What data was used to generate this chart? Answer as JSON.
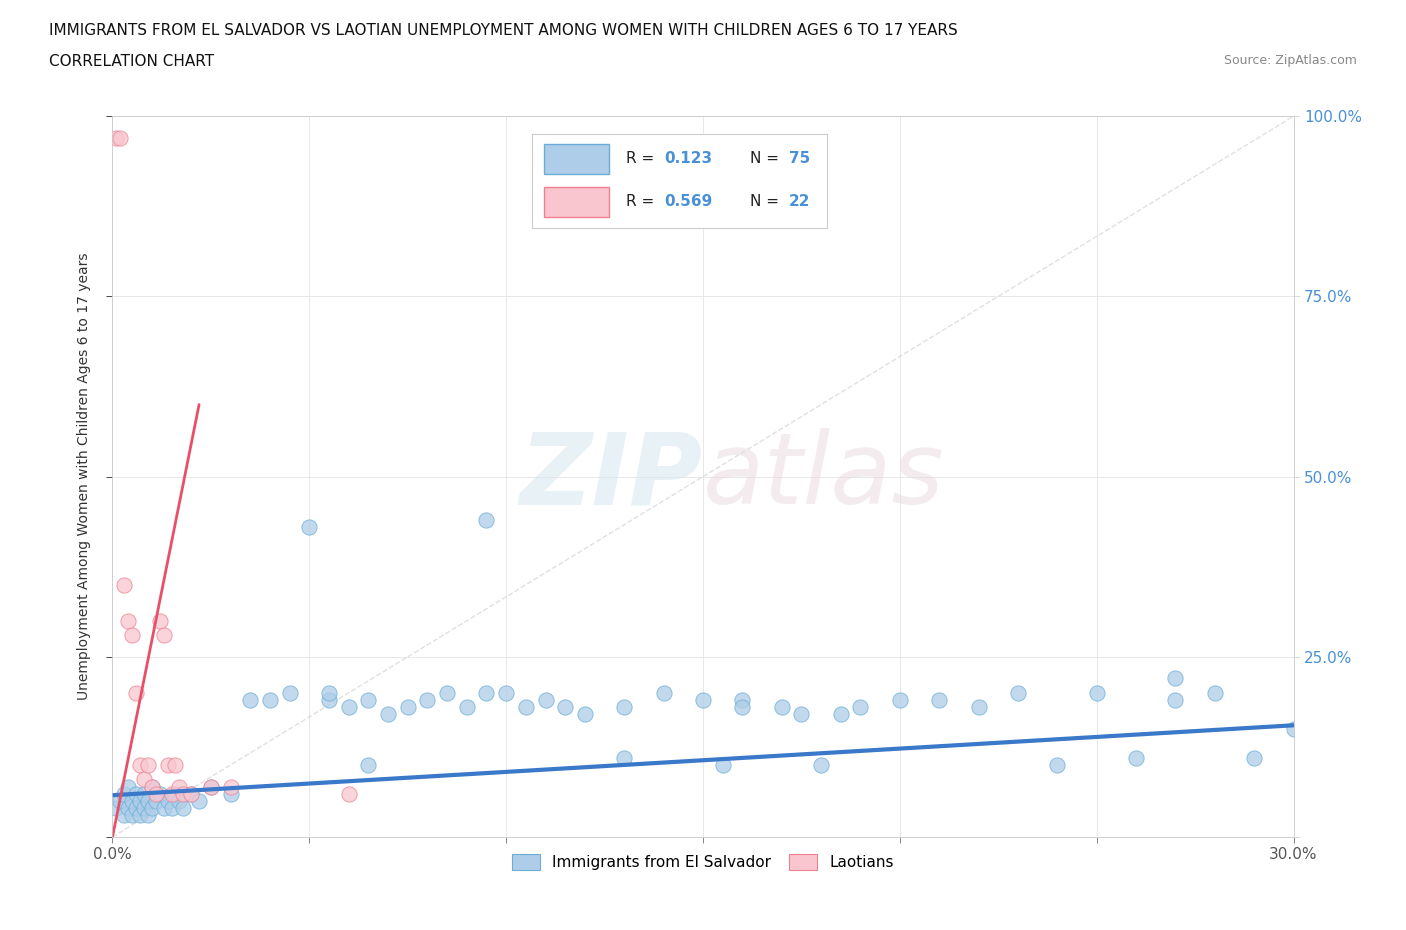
{
  "title": "IMMIGRANTS FROM EL SALVADOR VS LAOTIAN UNEMPLOYMENT AMONG WOMEN WITH CHILDREN AGES 6 TO 17 YEARS",
  "subtitle": "CORRELATION CHART",
  "source": "Source: ZipAtlas.com",
  "ylabel": "Unemployment Among Women with Children Ages 6 to 17 years",
  "xlim": [
    0.0,
    0.3
  ],
  "ylim": [
    0.0,
    1.0
  ],
  "legend_r1": "0.123",
  "legend_n1": "75",
  "legend_r2": "0.569",
  "legend_n2": "22",
  "legend_label1": "Immigrants from El Salvador",
  "legend_label2": "Laotians",
  "watermark_zip": "ZIP",
  "watermark_atlas": "atlas",
  "color_blue_fill": "#aecde8",
  "color_blue_edge": "#6aaed6",
  "color_pink_fill": "#f9c6d0",
  "color_pink_edge": "#f08090",
  "color_trend_blue": "#3a78c9",
  "color_trend_pink": "#e8506a",
  "color_trend_blue_dashed": "#b0c4d8",
  "color_text_blue": "#4a90d9",
  "color_text_rn": "#3a78c9",
  "background_color": "#ffffff",
  "grid_color": "#e8e8e8",
  "blue_x": [
    0.001,
    0.002,
    0.003,
    0.003,
    0.004,
    0.004,
    0.005,
    0.005,
    0.006,
    0.006,
    0.007,
    0.007,
    0.008,
    0.008,
    0.009,
    0.009,
    0.01,
    0.01,
    0.011,
    0.012,
    0.013,
    0.014,
    0.015,
    0.016,
    0.017,
    0.018,
    0.02,
    0.022,
    0.025,
    0.03,
    0.035,
    0.04,
    0.045,
    0.05,
    0.055,
    0.055,
    0.06,
    0.065,
    0.07,
    0.075,
    0.08,
    0.085,
    0.09,
    0.095,
    0.1,
    0.105,
    0.11,
    0.115,
    0.12,
    0.095,
    0.13,
    0.14,
    0.15,
    0.16,
    0.16,
    0.17,
    0.18,
    0.19,
    0.2,
    0.21,
    0.22,
    0.23,
    0.24,
    0.25,
    0.26,
    0.27,
    0.28,
    0.29,
    0.3,
    0.27,
    0.175,
    0.185,
    0.155,
    0.065,
    0.13
  ],
  "blue_y": [
    0.04,
    0.05,
    0.03,
    0.06,
    0.04,
    0.07,
    0.05,
    0.03,
    0.06,
    0.04,
    0.05,
    0.03,
    0.04,
    0.06,
    0.05,
    0.03,
    0.07,
    0.04,
    0.05,
    0.06,
    0.04,
    0.05,
    0.04,
    0.06,
    0.05,
    0.04,
    0.06,
    0.05,
    0.07,
    0.06,
    0.19,
    0.19,
    0.2,
    0.43,
    0.19,
    0.2,
    0.18,
    0.19,
    0.17,
    0.18,
    0.19,
    0.2,
    0.18,
    0.2,
    0.2,
    0.18,
    0.19,
    0.18,
    0.17,
    0.44,
    0.18,
    0.2,
    0.19,
    0.19,
    0.18,
    0.18,
    0.1,
    0.18,
    0.19,
    0.19,
    0.18,
    0.2,
    0.1,
    0.2,
    0.11,
    0.19,
    0.2,
    0.11,
    0.15,
    0.22,
    0.17,
    0.17,
    0.1,
    0.1,
    0.11
  ],
  "pink_x": [
    0.001,
    0.002,
    0.003,
    0.004,
    0.005,
    0.006,
    0.007,
    0.008,
    0.009,
    0.01,
    0.011,
    0.012,
    0.013,
    0.014,
    0.015,
    0.016,
    0.017,
    0.018,
    0.02,
    0.025,
    0.03,
    0.06
  ],
  "pink_y": [
    0.97,
    0.97,
    0.35,
    0.3,
    0.28,
    0.2,
    0.1,
    0.08,
    0.1,
    0.07,
    0.06,
    0.3,
    0.28,
    0.1,
    0.06,
    0.1,
    0.07,
    0.06,
    0.06,
    0.07,
    0.07,
    0.06
  ],
  "blue_trend_x": [
    0.0,
    0.3
  ],
  "blue_trend_y": [
    0.058,
    0.155
  ],
  "pink_trend_x": [
    0.0,
    0.022
  ],
  "pink_trend_y": [
    0.0,
    0.6
  ]
}
